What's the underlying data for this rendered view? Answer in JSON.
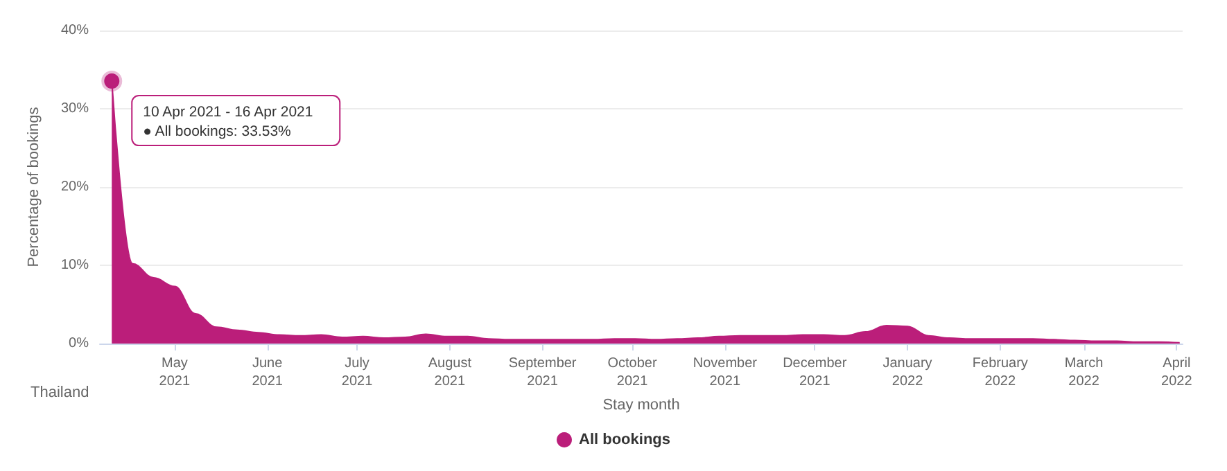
{
  "chart_data": {
    "type": "area",
    "xlabel": "Stay month",
    "ylabel": "Percentage of bookings",
    "x": [
      "2021-04-10",
      "2021-04-17",
      "2021-04-24",
      "2021-05-01",
      "2021-05-08",
      "2021-05-15",
      "2021-05-22",
      "2021-05-29",
      "2021-06-05",
      "2021-06-12",
      "2021-06-19",
      "2021-06-26",
      "2021-07-03",
      "2021-07-10",
      "2021-07-17",
      "2021-07-24",
      "2021-07-31",
      "2021-08-07",
      "2021-08-14",
      "2021-08-21",
      "2021-08-28",
      "2021-09-04",
      "2021-09-11",
      "2021-09-18",
      "2021-09-25",
      "2021-10-02",
      "2021-10-09",
      "2021-10-16",
      "2021-10-23",
      "2021-10-30",
      "2021-11-06",
      "2021-11-13",
      "2021-11-20",
      "2021-11-27",
      "2021-12-04",
      "2021-12-11",
      "2021-12-18",
      "2021-12-25",
      "2022-01-01",
      "2022-01-08",
      "2022-01-15",
      "2022-01-22",
      "2022-01-29",
      "2022-02-05",
      "2022-02-12",
      "2022-02-19",
      "2022-02-26",
      "2022-03-05",
      "2022-03-12",
      "2022-03-19",
      "2022-03-26",
      "2022-04-02"
    ],
    "series": [
      {
        "name": "All bookings",
        "color": "#bb1e7a",
        "values": [
          33.53,
          10.2,
          8.4,
          7.3,
          3.8,
          2.1,
          1.7,
          1.4,
          1.1,
          1.0,
          1.1,
          0.8,
          0.9,
          0.7,
          0.8,
          1.2,
          0.9,
          0.9,
          0.6,
          0.5,
          0.5,
          0.5,
          0.5,
          0.5,
          0.6,
          0.6,
          0.5,
          0.6,
          0.7,
          0.9,
          1.0,
          1.0,
          1.0,
          1.1,
          1.1,
          1.0,
          1.5,
          2.3,
          2.2,
          1.0,
          0.7,
          0.6,
          0.6,
          0.6,
          0.6,
          0.5,
          0.4,
          0.3,
          0.3,
          0.2,
          0.2,
          0.1
        ]
      }
    ],
    "xlim": [
      "2021-04-06",
      "2022-04-03"
    ],
    "xticks": [
      {
        "value": "2021-05-01",
        "label": "May\n2021"
      },
      {
        "value": "2021-06-01",
        "label": "June\n2021"
      },
      {
        "value": "2021-07-01",
        "label": "July\n2021"
      },
      {
        "value": "2021-08-01",
        "label": "August\n2021"
      },
      {
        "value": "2021-09-01",
        "label": "September\n2021"
      },
      {
        "value": "2021-10-01",
        "label": "October\n2021"
      },
      {
        "value": "2021-11-01",
        "label": "November\n2021"
      },
      {
        "value": "2021-12-01",
        "label": "December\n2021"
      },
      {
        "value": "2022-01-01",
        "label": "January\n2022"
      },
      {
        "value": "2022-02-01",
        "label": "February\n2022"
      },
      {
        "value": "2022-03-01",
        "label": "March\n2022"
      },
      {
        "value": "2022-04-01",
        "label": "April\n2022"
      }
    ],
    "ylim": [
      0,
      40
    ],
    "yticks": [
      {
        "value": 0,
        "label": "0%"
      },
      {
        "value": 10,
        "label": "10%"
      },
      {
        "value": 20,
        "label": "20%"
      },
      {
        "value": 30,
        "label": "30%"
      },
      {
        "value": 40,
        "label": "40%"
      }
    ],
    "grid": "y",
    "legend": "bottom",
    "marker": "none",
    "annotations": [
      {
        "text": "10 Apr 2021 - 16 Apr 2021\n● All bookings: 33.53%",
        "x": "2021-04-10",
        "y": 33.53
      },
      "Thailand"
    ]
  }
}
